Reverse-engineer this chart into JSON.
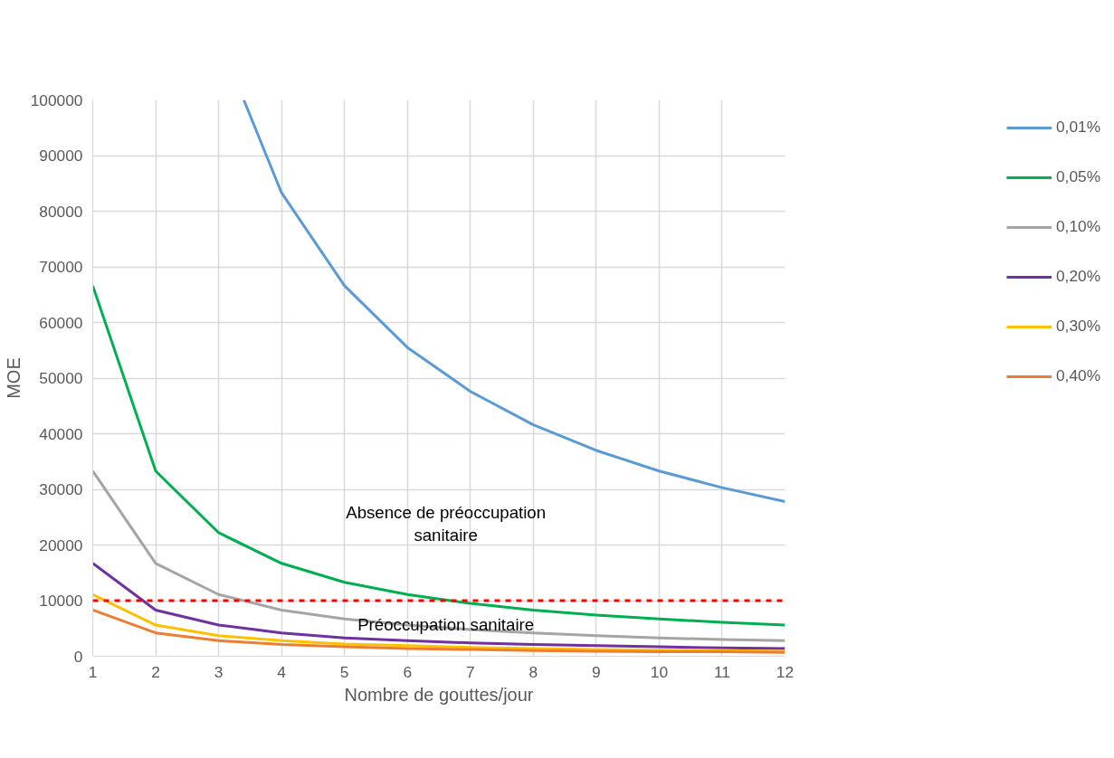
{
  "chart_data": {
    "type": "line",
    "xlabel": "Nombre de gouttes/jour",
    "ylabel": "MOE",
    "x": [
      1,
      2,
      3,
      4,
      5,
      6,
      7,
      8,
      9,
      10,
      11,
      12
    ],
    "xlim": [
      1,
      12
    ],
    "xticks": [
      1,
      2,
      3,
      4,
      5,
      6,
      7,
      8,
      9,
      10,
      11,
      12
    ],
    "ylim": [
      0,
      100000
    ],
    "yticks": [
      0,
      10000,
      20000,
      30000,
      40000,
      50000,
      60000,
      70000,
      80000,
      90000,
      100000
    ],
    "grid": true,
    "legend": "top right",
    "line_style": "solid",
    "series": [
      {
        "name": "0,01%",
        "color": "#5b9bd5",
        "x": [
          3.4,
          4,
          5,
          6,
          7,
          8,
          9,
          10,
          11,
          12
        ],
        "values": [
          100000,
          83300,
          66600,
          55500,
          47600,
          41600,
          37000,
          33300,
          30300,
          27800
        ]
      },
      {
        "name": "0,05%",
        "color": "#00b050",
        "values": [
          66600,
          33300,
          22200,
          16700,
          13300,
          11100,
          9500,
          8300,
          7400,
          6700,
          6100,
          5600
        ]
      },
      {
        "name": "0,10%",
        "color": "#a5a5a5",
        "values": [
          33300,
          16700,
          11100,
          8300,
          6700,
          5600,
          4800,
          4200,
          3700,
          3300,
          3000,
          2800
        ]
      },
      {
        "name": "0,20%",
        "color": "#7030a0",
        "values": [
          16700,
          8300,
          5600,
          4200,
          3300,
          2800,
          2400,
          2100,
          1900,
          1700,
          1500,
          1400
        ]
      },
      {
        "name": "0,30%",
        "color": "#ffc000",
        "values": [
          11100,
          5600,
          3700,
          2800,
          2200,
          1900,
          1600,
          1400,
          1200,
          1100,
          1000,
          900
        ]
      },
      {
        "name": "0,40%",
        "color": "#ed7d31",
        "values": [
          8300,
          4200,
          2800,
          2100,
          1700,
          1400,
          1200,
          1000,
          900,
          800,
          800,
          700
        ]
      }
    ],
    "ref_lines": [
      {
        "axis": "y",
        "value": 10000,
        "color": "#ff0000",
        "line_style": "dashed"
      }
    ],
    "annotations": [
      "Absence de préoccupation\nsanitaire",
      "Préoccupation sanitaire"
    ]
  }
}
